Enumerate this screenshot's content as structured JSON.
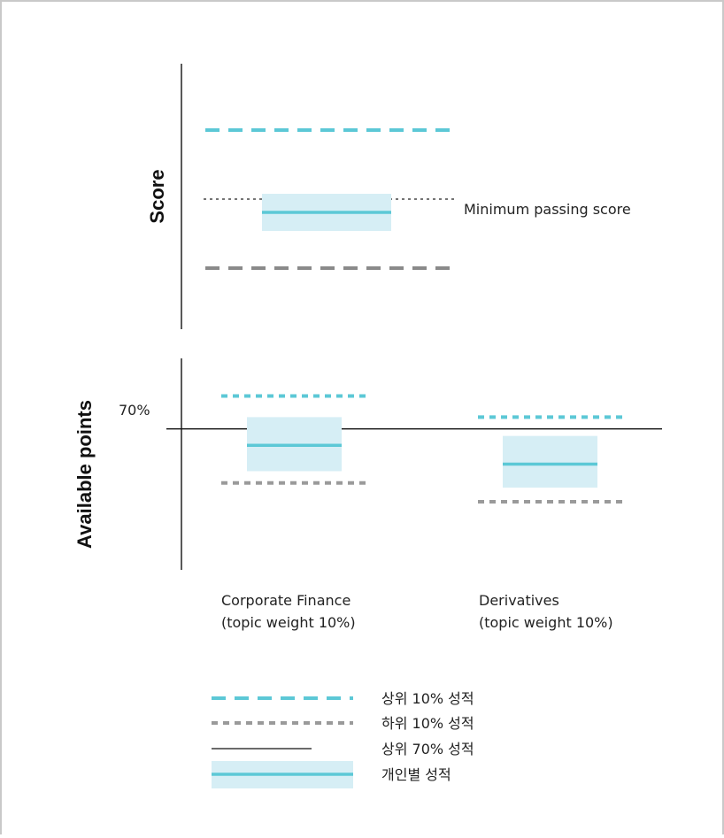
{
  "chart_data": [
    {
      "type": "range",
      "ylabel": "Score",
      "annotation": "Minimum passing score",
      "series": [
        {
          "name": "상위 10% 성적",
          "value": 0.75
        },
        {
          "name": "하위 10% 성적",
          "value": 0.23
        },
        {
          "name": "개인별 성적",
          "value": 0.44,
          "band": [
            0.37,
            0.51
          ]
        }
      ],
      "reference": {
        "name": "Minimum passing score",
        "value": 0.49
      }
    },
    {
      "type": "range",
      "ylabel": "Available points",
      "reference_label": "70%",
      "reference_value": 70,
      "categories": [
        {
          "label": "Corporate Finance",
          "sublabel": "(topic weight 10%)",
          "top10": 84,
          "bottom10": 47,
          "individual": 63,
          "band": [
            52,
            75
          ]
        },
        {
          "label": "Derivatives",
          "sublabel": "(topic weight 10%)",
          "top10": 75,
          "bottom10": 39,
          "individual": 55,
          "band": [
            45,
            67
          ]
        }
      ],
      "ylim": [
        10,
        100
      ]
    }
  ],
  "legend": [
    {
      "label": "상위 10% 성적",
      "style": "dash-teal"
    },
    {
      "label": "하위 10% 성적",
      "style": "dot-gray"
    },
    {
      "label": "상위 70% 성적",
      "style": "solid-black"
    },
    {
      "label": "개인별 성적",
      "style": "band-teal"
    }
  ],
  "colors": {
    "teal": "#5cc8d6",
    "band": "#d6eef5",
    "gray": "#8a8a8a",
    "black": "#111111"
  }
}
